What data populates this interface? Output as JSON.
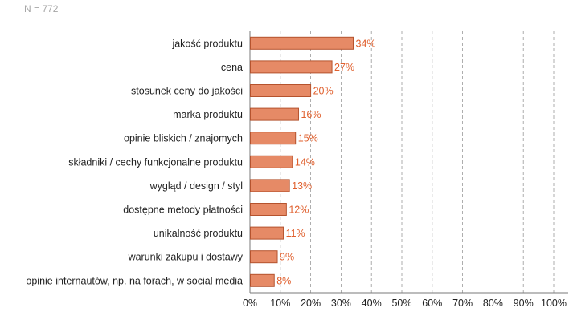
{
  "note": "N = 772",
  "colors": {
    "bar_fill": "#E68A66",
    "bar_stroke": "#B5532E",
    "label": "#E0602E",
    "grid": "#9a9a9a",
    "axis": "#7a7a7a"
  },
  "chart_data": {
    "type": "bar",
    "orientation": "horizontal",
    "title": "",
    "xlabel": "",
    "ylabel": "",
    "categories": [
      "jakość produktu",
      "cena",
      "stosunek ceny do jakości",
      "marka produktu",
      "opinie bliskich / znajomych",
      "składniki / cechy funkcjonalne produktu",
      "wygląd / design / styl",
      "dostępne metody płatności",
      "unikalność produktu",
      "warunki zakupu i dostawy",
      "opinie internautów, np. na forach, w social media"
    ],
    "values": [
      34,
      27,
      20,
      16,
      15,
      14,
      13,
      12,
      11,
      9,
      8
    ],
    "value_labels": [
      "34%",
      "27%",
      "20%",
      "16%",
      "15%",
      "14%",
      "13%",
      "12%",
      "11%",
      "9%",
      "8%"
    ],
    "xlim": [
      0,
      100
    ],
    "x_ticks": [
      0,
      10,
      20,
      30,
      40,
      50,
      60,
      70,
      80,
      90,
      100
    ],
    "x_tick_labels": [
      "0%",
      "10%",
      "20%",
      "30%",
      "40%",
      "50%",
      "60%",
      "70%",
      "80%",
      "90%",
      "100%"
    ],
    "grid": "vertical dashed",
    "legend": "none"
  }
}
